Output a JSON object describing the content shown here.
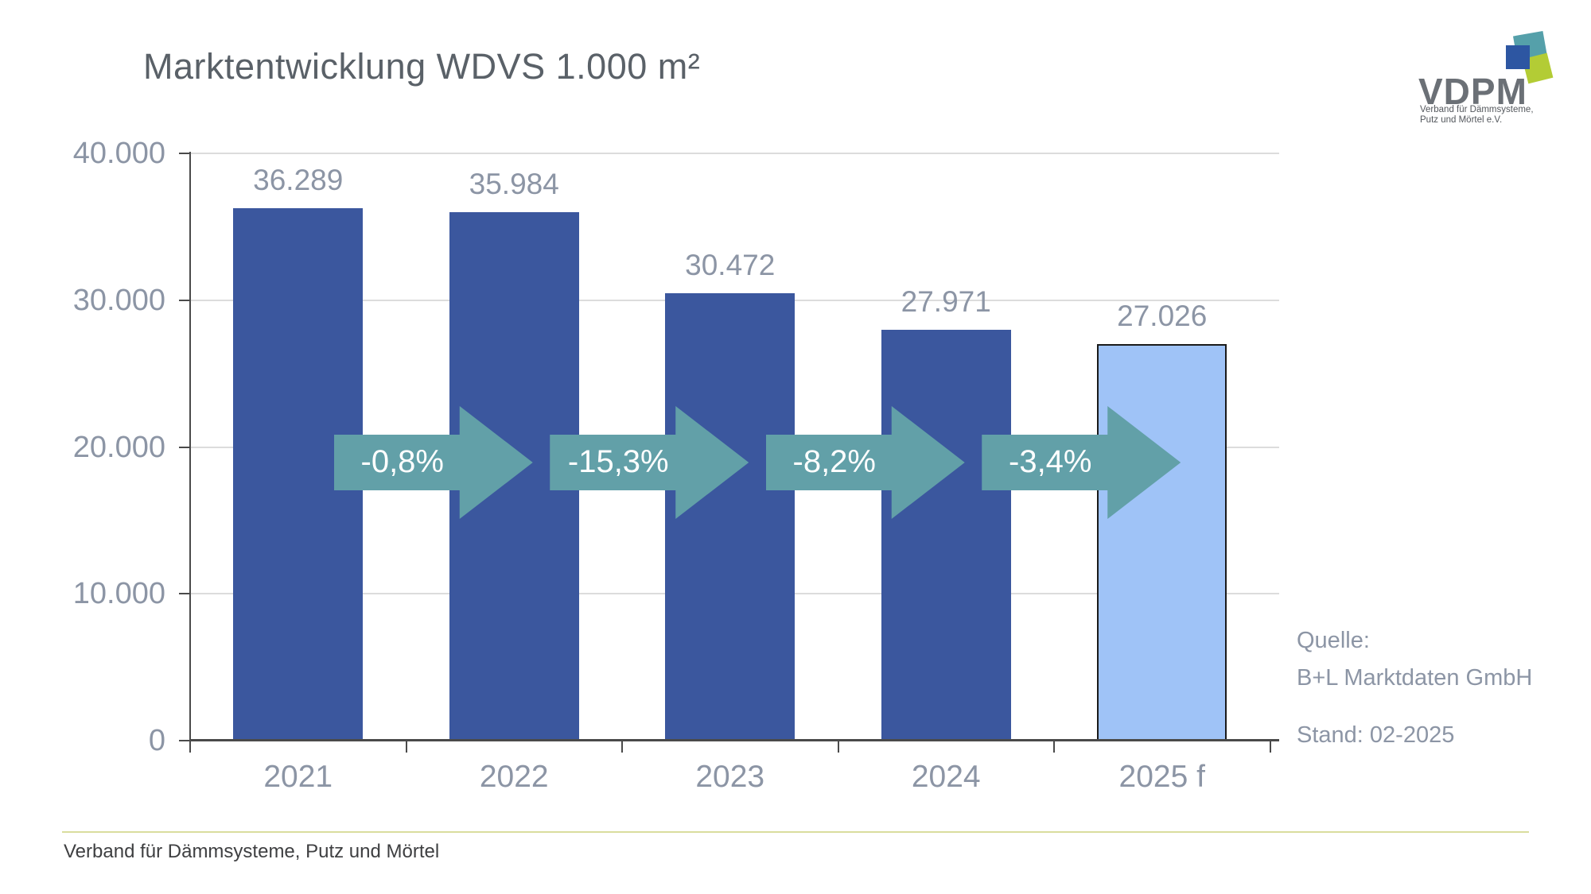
{
  "title": "Marktentwicklung WDVS 1.000 m²",
  "chart_data": {
    "type": "bar",
    "title": "Marktentwicklung WDVS 1.000 m²",
    "categories": [
      "2021",
      "2022",
      "2023",
      "2024",
      "2025 f"
    ],
    "values": [
      36289,
      35984,
      30472,
      27971,
      27026
    ],
    "value_labels": [
      "36.289",
      "35.984",
      "30.472",
      "27.971",
      "27.026"
    ],
    "changes_pct": [
      -0.8,
      -15.3,
      -8.2,
      -3.4
    ],
    "change_labels": [
      "-0,8%",
      "-15,3%",
      "-8,2%",
      "-3,4%"
    ],
    "y_ticks": [
      "40.000",
      "30.000",
      "20.000",
      "10.000",
      "0"
    ],
    "ylim": [
      0,
      40000
    ],
    "grid": true,
    "legend": "none",
    "bar_color": "#3B579E",
    "forecast_bar_color": "#9FC3F7",
    "arrow_color": "#62A0A8",
    "axis_label_color": "#8C95A5"
  },
  "source": {
    "line1": "Quelle:",
    "line2": "B+L Marktdaten GmbH",
    "line3": "Stand: 02-2025"
  },
  "footer": {
    "text": "Verband für Dämmsysteme, Putz und Mörtel"
  },
  "logo": {
    "name": "VDPM",
    "tagline_line1": "Verband für Dämmsysteme,",
    "tagline_line2": "Putz und Mörtel e.V.",
    "colors": {
      "blue": "#2D56A2",
      "teal": "#55A0AA",
      "green": "#B3CC35",
      "gray": "#6B7076"
    }
  }
}
